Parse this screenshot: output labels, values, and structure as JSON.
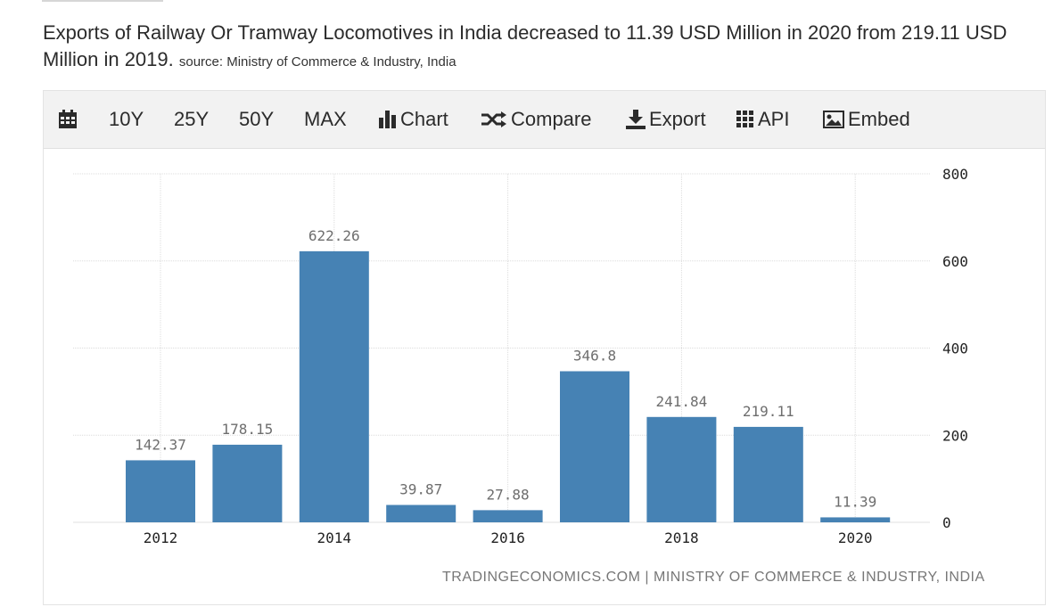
{
  "headline": {
    "main": "Exports of Railway Or Tramway Locomotives in India decreased to 11.39 USD Million in 2020 from 219.11 USD Million in 2019.",
    "source": "source: Ministry of Commerce & Industry, India"
  },
  "toolbar": {
    "range_10y": "10Y",
    "range_25y": "25Y",
    "range_50y": "50Y",
    "range_max": "MAX",
    "chart": "Chart",
    "compare": "Compare",
    "export": "Export",
    "api": "API",
    "embed": "Embed"
  },
  "chart_data": {
    "type": "bar",
    "categories": [
      "2012",
      "2013",
      "2014",
      "2015",
      "2016",
      "2017",
      "2018",
      "2019",
      "2020"
    ],
    "values": [
      142.37,
      178.15,
      622.26,
      39.87,
      27.88,
      346.8,
      241.84,
      219.11,
      11.39
    ],
    "x_tick_labels": [
      "2012",
      "",
      "2014",
      "",
      "2016",
      "",
      "2018",
      "",
      "2020"
    ],
    "y_ticks": [
      0,
      200,
      400,
      600,
      800
    ],
    "ylim": [
      0,
      800
    ],
    "y_axis_position": "right",
    "grid": true,
    "bar_color": "#4682b4"
  },
  "footer": "TRADINGECONOMICS.COM | MINISTRY OF COMMERCE & INDUSTRY, INDIA"
}
